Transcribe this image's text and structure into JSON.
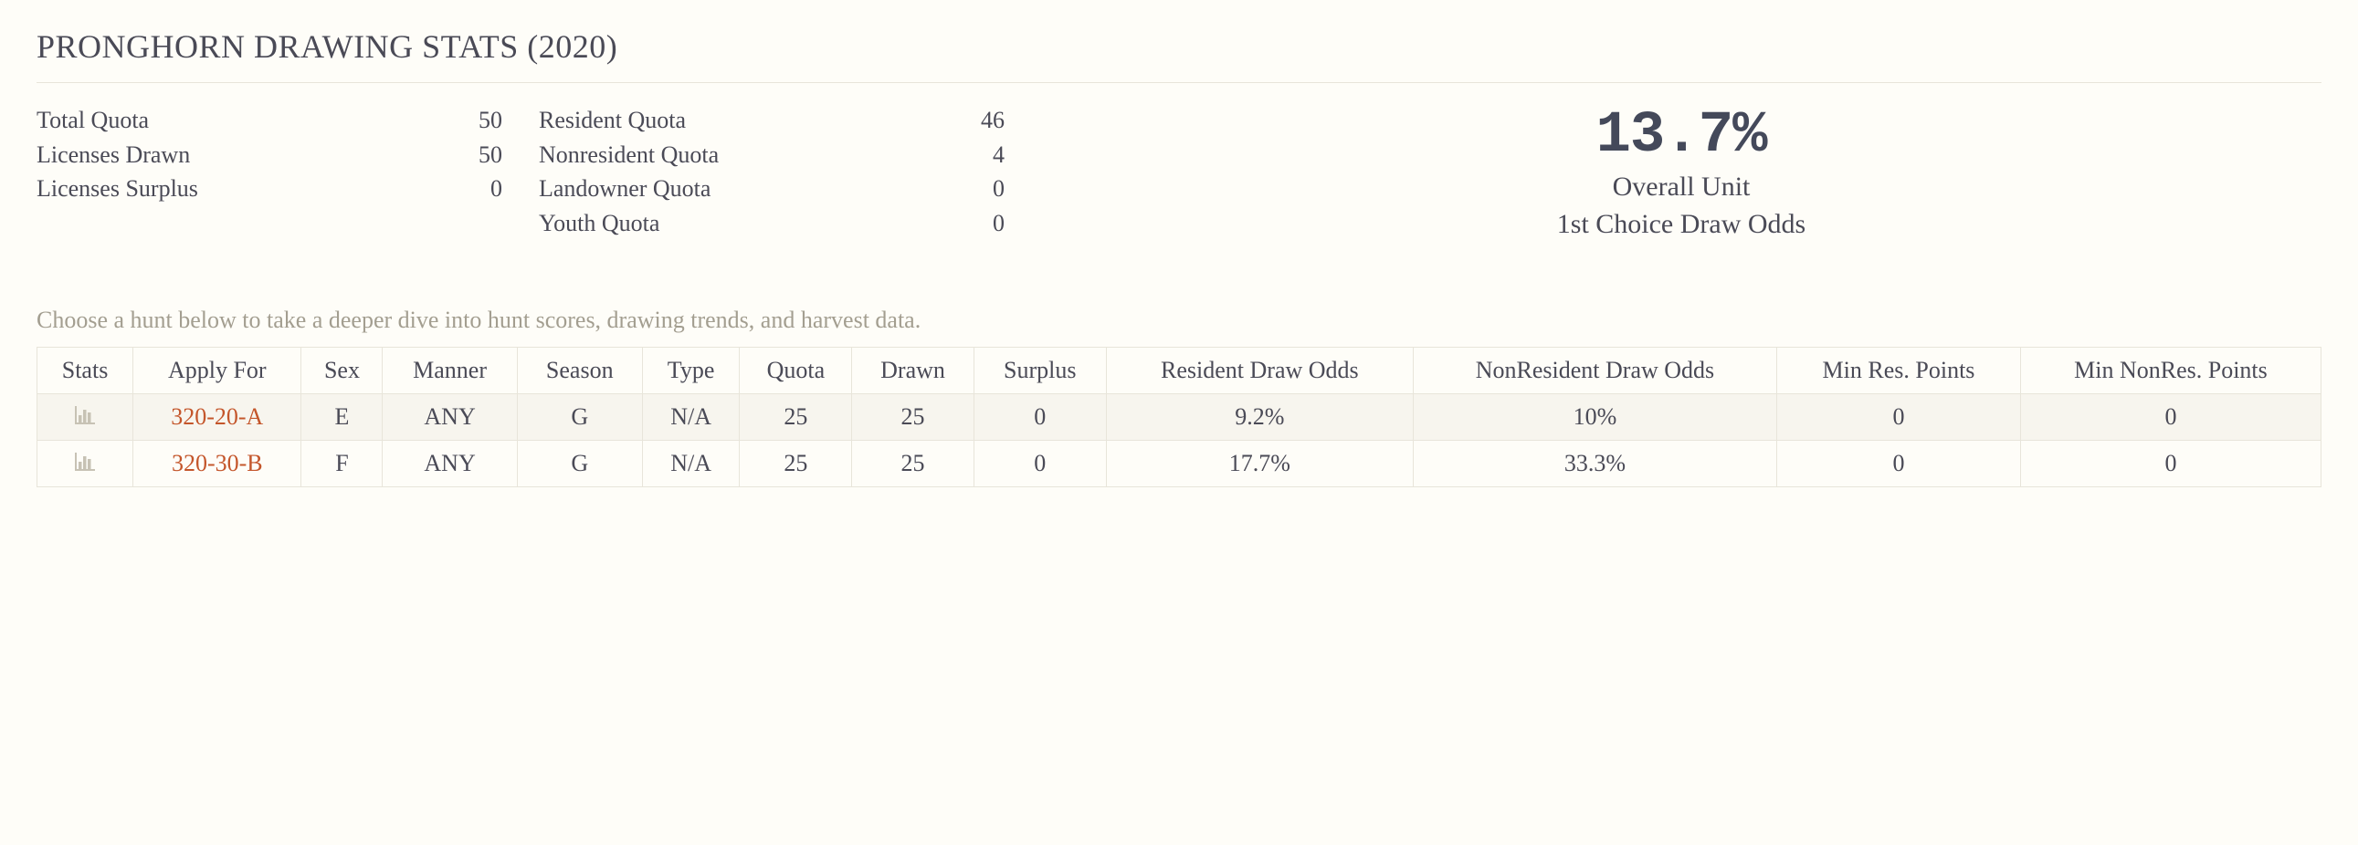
{
  "title": "PRONGHORN DRAWING STATS (2020)",
  "quota_left": [
    {
      "label": "Total Quota",
      "value": "50"
    },
    {
      "label": "Licenses Drawn",
      "value": "50"
    },
    {
      "label": "Licenses Surplus",
      "value": "0"
    }
  ],
  "quota_right": [
    {
      "label": "Resident Quota",
      "value": "46"
    },
    {
      "label": "Nonresident Quota",
      "value": "4"
    },
    {
      "label": "Landowner Quota",
      "value": "0"
    },
    {
      "label": "Youth Quota",
      "value": "0"
    }
  ],
  "overall": {
    "value": "13.7%",
    "line1": "Overall Unit",
    "line2": "1st Choice Draw Odds"
  },
  "helper": "Choose a hunt below to take a deeper dive into hunt scores, drawing trends, and harvest data.",
  "table": {
    "columns": [
      "Stats",
      "Apply For",
      "Sex",
      "Manner",
      "Season",
      "Type",
      "Quota",
      "Drawn",
      "Surplus",
      "Resident Draw Odds",
      "NonResident Draw Odds",
      "Min Res. Points",
      "Min NonRes. Points"
    ],
    "rows": [
      {
        "apply_for": "320-20-A",
        "sex": "E",
        "manner": "ANY",
        "season": "G",
        "type": "N/A",
        "quota": "25",
        "drawn": "25",
        "surplus": "0",
        "res_odds": "9.2%",
        "nonres_odds": "10%",
        "min_res_pts": "0",
        "min_nonres_pts": "0"
      },
      {
        "apply_for": "320-30-B",
        "sex": "F",
        "manner": "ANY",
        "season": "G",
        "type": "N/A",
        "quota": "25",
        "drawn": "25",
        "surplus": "0",
        "res_odds": "17.7%",
        "nonres_odds": "33.3%",
        "min_res_pts": "0",
        "min_nonres_pts": "0"
      }
    ]
  },
  "colors": {
    "background": "#fefdf8",
    "text": "#4a4a56",
    "muted": "#a39e90",
    "link": "#c4562b",
    "border": "#e8e5da",
    "row_alt": "#f7f5ee",
    "icon": "#c7c2b4"
  }
}
